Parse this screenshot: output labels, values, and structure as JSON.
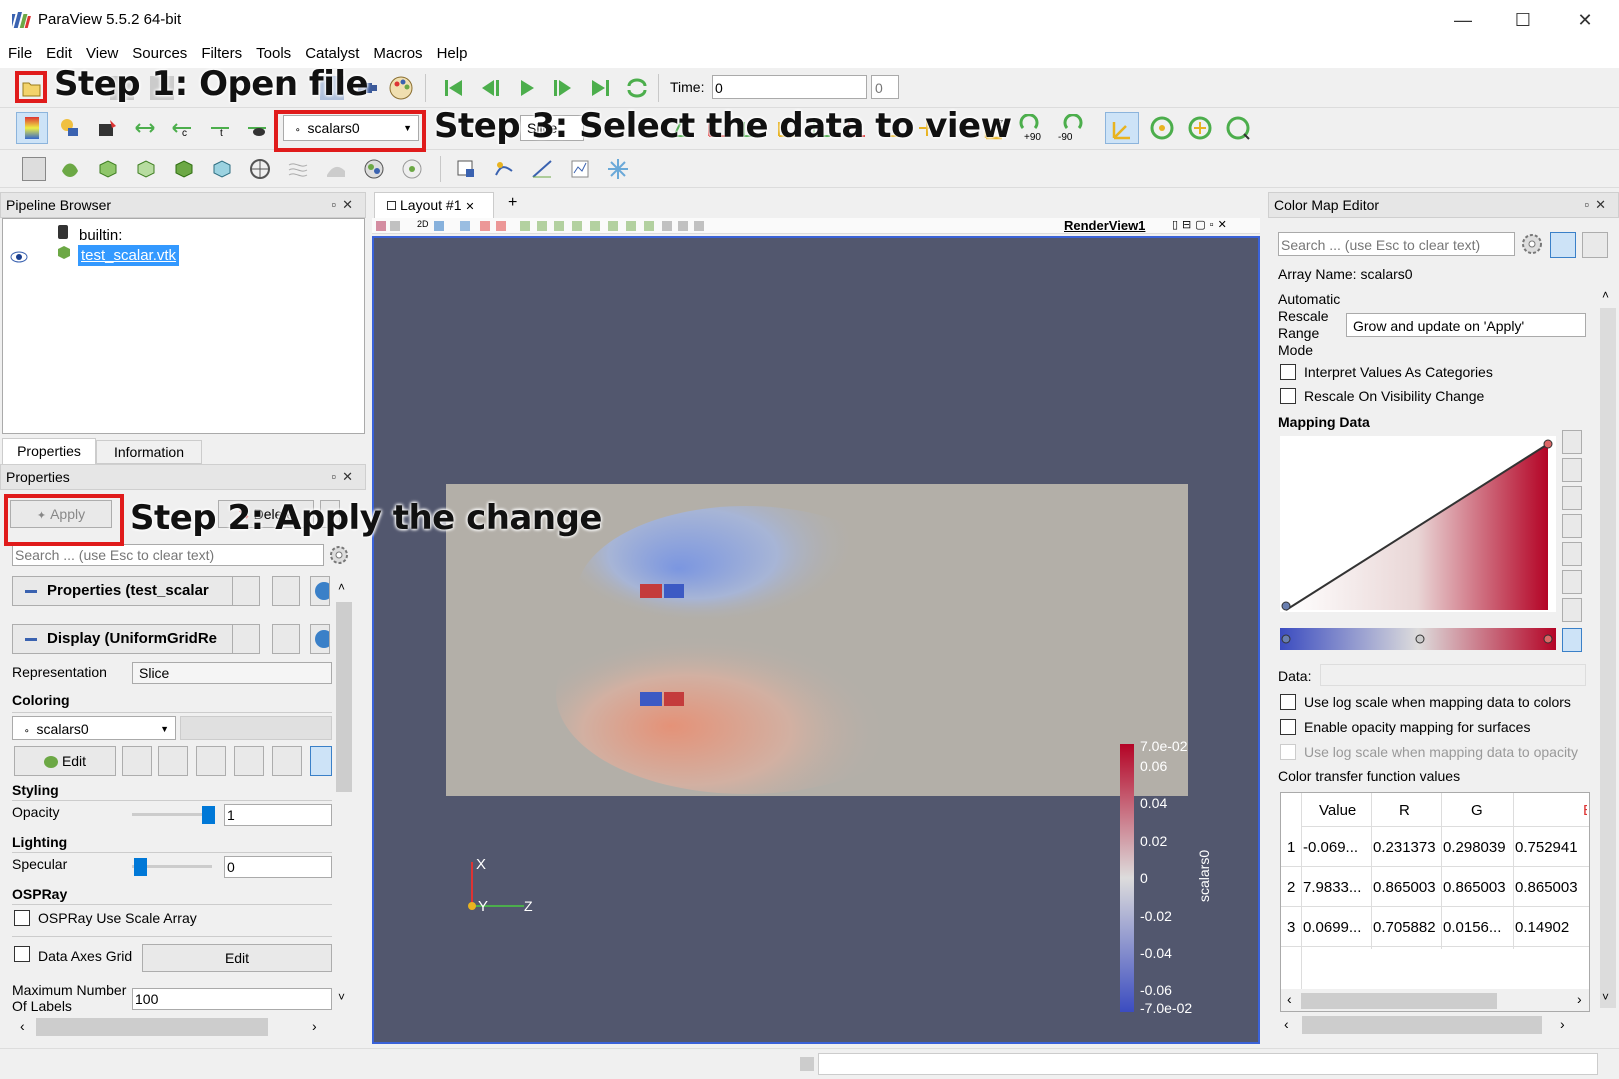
{
  "window": {
    "title": "ParaView 5.5.2 64-bit",
    "minimize": "—",
    "maximize": "☐",
    "close": "✕"
  },
  "menu": [
    "File",
    "Edit",
    "View",
    "Sources",
    "Filters",
    "Tools",
    "Catalyst",
    "Macros",
    "Help"
  ],
  "toolbar": {
    "time_label": "Time:",
    "time_value": "0",
    "time_index": "0",
    "array_select": "scalars0",
    "representation_select": "Slice",
    "rotate_plus": "+90",
    "rotate_minus": "-90"
  },
  "annotations": {
    "step1": "Step 1: Open file",
    "step2": "Step 2: Apply the change",
    "step3": "Step 3: Select the data to view"
  },
  "pipeline": {
    "title": "Pipeline Browser",
    "builtin": "builtin:",
    "file": "test_scalar.vtk"
  },
  "tabs": {
    "properties": "Properties",
    "information": "Information"
  },
  "properties": {
    "title": "Properties",
    "apply": "Apply",
    "delete": "Delete",
    "search_placeholder": "Search ... (use Esc to clear text)",
    "section_properties": "Properties (test_scalar",
    "section_display": "Display (UniformGridRe",
    "representation_label": "Representation",
    "representation_value": "Slice",
    "coloring_label": "Coloring",
    "coloring_value": "scalars0",
    "edit_label": "Edit",
    "styling_label": "Styling",
    "opacity_label": "Opacity",
    "opacity_value": "1",
    "lighting_label": "Lighting",
    "specular_label": "Specular",
    "specular_value": "0",
    "ospray_label": "OSPRay",
    "ospray_scale": "OSPRay Use Scale Array",
    "data_axes_grid": "Data Axes Grid",
    "data_axes_edit": "Edit",
    "max_labels_label_1": "Maximum Number",
    "max_labels_label_2": "Of Labels",
    "max_labels_value": "100"
  },
  "layout": {
    "tab_label": "Layout #1",
    "tab_close": "✕",
    "add_tab": "+",
    "render_view": "RenderView1",
    "view_2d": "2D"
  },
  "colorbar": {
    "title": "scalars0",
    "max_label": "7.0e-02",
    "min_label": "-7.0e-02",
    "ticks": [
      "0.06",
      "0.04",
      "0.02",
      "0",
      "-0.02",
      "-0.04",
      "-0.06"
    ]
  },
  "axes": {
    "x": "X",
    "y": "Y",
    "z": "Z"
  },
  "colormap": {
    "title": "Color Map Editor",
    "search_placeholder": "Search ... (use Esc to clear text)",
    "array_name": "Array Name: scalars0",
    "rescale_label_1": "Automatic",
    "rescale_label_2": "Rescale",
    "rescale_label_3": "Range",
    "rescale_label_4": "Mode",
    "rescale_value": "Grow and update on 'Apply'",
    "interpret_categories": "Interpret Values As Categories",
    "rescale_visibility": "Rescale On Visibility Change",
    "mapping_data": "Mapping Data",
    "data_label": "Data:",
    "log_scale_colors": "Use log scale when mapping data to colors",
    "enable_opacity": "Enable opacity mapping for surfaces",
    "log_scale_opacity": "Use log scale when mapping data to opacity",
    "ctf_values": "Color transfer function values",
    "table_headers": [
      "Value",
      "R",
      "G",
      "B"
    ],
    "table_rows": [
      [
        "1",
        "-0.069...",
        "0.231373",
        "0.298039",
        "0.752941"
      ],
      [
        "2",
        "7.9833...",
        "0.865003",
        "0.865003",
        "0.865003"
      ],
      [
        "3",
        "0.0699...",
        "0.705882",
        "0.0156...",
        "0.14902"
      ]
    ]
  },
  "colors": {
    "background": "#52576e",
    "slice": "#b3afa8",
    "accent": "#0078d7",
    "annotation_box": "#e01b1b"
  }
}
